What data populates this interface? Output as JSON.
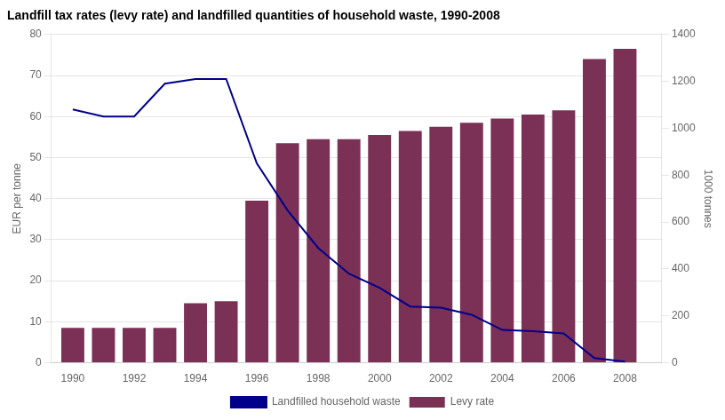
{
  "chart_data": {
    "type": "bar",
    "title": "Landfill tax rates (levy rate) and landfilled quantities of household waste, 1990-2008",
    "x": [
      1990,
      1991,
      1992,
      1993,
      1994,
      1995,
      1996,
      1997,
      1998,
      1999,
      2000,
      2001,
      2002,
      2003,
      2004,
      2005,
      2006,
      2007,
      2008
    ],
    "xlim": [
      1989.3,
      2009.2
    ],
    "xticks": [
      1990,
      1992,
      1994,
      1996,
      1998,
      2000,
      2002,
      2004,
      2006,
      2008
    ],
    "ylabel": "EUR per tonne",
    "ylim": [
      0,
      80
    ],
    "yticks": [
      0,
      10,
      20,
      30,
      40,
      50,
      60,
      70,
      80
    ],
    "y2label": "1000 tonnes",
    "y2lim": [
      0,
      1400
    ],
    "y2ticks": [
      0,
      200,
      400,
      600,
      800,
      1000,
      1200,
      1400
    ],
    "grid": true,
    "legend": "bottom",
    "series": [
      {
        "name": "Levy rate",
        "type": "bar",
        "color": "#7B3055",
        "values": [
          8.5,
          8.5,
          8.5,
          8.5,
          14.5,
          15.0,
          39.5,
          53.5,
          54.5,
          54.5,
          55.5,
          56.5,
          57.5,
          58.5,
          59.5,
          60.5,
          61.5,
          74.0,
          76.5
        ]
      },
      {
        "name": "Landfilled household waste",
        "type": "line",
        "color": "#00008B",
        "axis": "y2",
        "values": [
          1080,
          1050,
          1050,
          1190,
          1210,
          1210,
          850,
          650,
          490,
          380,
          320,
          240,
          235,
          205,
          140,
          135,
          125,
          20,
          5
        ]
      }
    ]
  }
}
